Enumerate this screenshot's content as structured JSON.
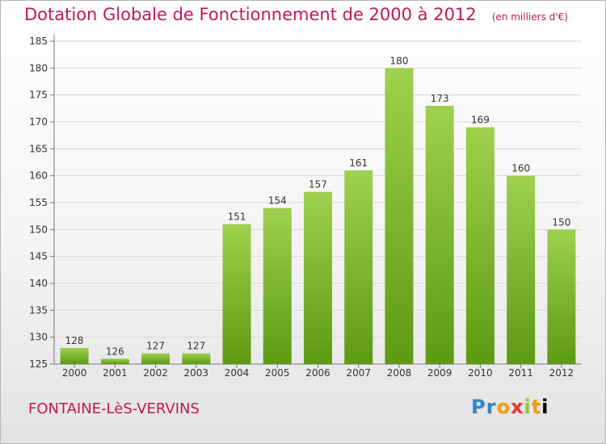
{
  "title": "Dotation Globale de Fonctionnement de 2000 à 2012",
  "unit_note": "(en milliers d'€)",
  "commune": "FONTAINE-LèS-VERVINS",
  "logo_text": "Proxiti",
  "colors": {
    "title": "#c0185a",
    "bar_light": "#9fd14e",
    "bar_dark": "#5c9a12",
    "axis": "#777777",
    "grid": "#d8d8d8"
  },
  "chart_data": {
    "type": "bar",
    "title": "Dotation Globale de Fonctionnement de 2000 à 2012",
    "subtitle": "(en milliers d'€)",
    "categories": [
      "2000",
      "2001",
      "2002",
      "2003",
      "2004",
      "2005",
      "2006",
      "2007",
      "2008",
      "2009",
      "2010",
      "2011",
      "2012"
    ],
    "values": [
      128,
      126,
      127,
      127,
      151,
      154,
      157,
      161,
      180,
      173,
      169,
      160,
      150
    ],
    "xlabel": "",
    "ylabel": "",
    "ylim": [
      125,
      185
    ],
    "yticks": [
      125,
      130,
      135,
      140,
      145,
      150,
      155,
      160,
      165,
      170,
      175,
      180,
      185
    ],
    "grid": true,
    "data_labels": true
  }
}
